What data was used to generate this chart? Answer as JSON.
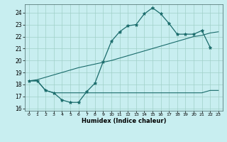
{
  "xlabel": "Humidex (Indice chaleur)",
  "bg_color": "#c8eef0",
  "line_color": "#1a6b6b",
  "grid_color": "#a0d0c8",
  "xlim": [
    -0.5,
    23.5
  ],
  "ylim": [
    15.8,
    24.7
  ],
  "yticks": [
    16,
    17,
    18,
    19,
    20,
    21,
    22,
    23,
    24
  ],
  "xticks": [
    0,
    1,
    2,
    3,
    4,
    5,
    6,
    7,
    8,
    9,
    10,
    11,
    12,
    13,
    14,
    15,
    16,
    17,
    18,
    19,
    20,
    21,
    22,
    23
  ],
  "line1_x": [
    0,
    1,
    2,
    3,
    4,
    5,
    6,
    7,
    8,
    9,
    10,
    11,
    12,
    13,
    14,
    15,
    16,
    17,
    18,
    19,
    20,
    21,
    22
  ],
  "line1_y": [
    18.3,
    18.3,
    17.5,
    17.3,
    16.7,
    16.5,
    16.5,
    17.4,
    18.1,
    19.9,
    21.6,
    22.4,
    22.9,
    23.0,
    23.9,
    24.4,
    23.9,
    23.1,
    22.2,
    22.2,
    22.2,
    22.5,
    21.1
  ],
  "line2_x": [
    0,
    1,
    2,
    3,
    4,
    5,
    6,
    7,
    8,
    9,
    10,
    11,
    12,
    13,
    14,
    15,
    16,
    17,
    18,
    19,
    20,
    21,
    22,
    23
  ],
  "line2_y": [
    18.3,
    18.3,
    17.5,
    17.3,
    17.3,
    17.3,
    17.3,
    17.3,
    17.3,
    17.3,
    17.3,
    17.3,
    17.3,
    17.3,
    17.3,
    17.3,
    17.3,
    17.3,
    17.3,
    17.3,
    17.3,
    17.3,
    17.5,
    17.5
  ],
  "line3_x": [
    0,
    1,
    2,
    3,
    4,
    5,
    6,
    7,
    8,
    9,
    10,
    11,
    12,
    13,
    14,
    15,
    16,
    17,
    18,
    19,
    20,
    21,
    22,
    23
  ],
  "line3_y": [
    18.3,
    18.4,
    18.6,
    18.8,
    19.0,
    19.2,
    19.4,
    19.55,
    19.7,
    19.85,
    20.0,
    20.2,
    20.4,
    20.6,
    20.8,
    21.0,
    21.2,
    21.4,
    21.6,
    21.8,
    22.0,
    22.1,
    22.3,
    22.4
  ]
}
